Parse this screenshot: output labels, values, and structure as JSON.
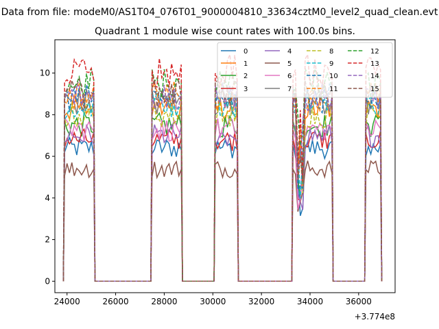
{
  "figure": {
    "suptitle": "Data from file: modeM0/AS1T04_076T01_9000004810_33634cztM0_level2_quad_clean.evt"
  },
  "chart_data": {
    "type": "line",
    "title": "Quadrant 1 module wise count rates with 100.0s bins.",
    "xlabel": "",
    "ylabel": "",
    "x_offset_label": "+3.774e8",
    "xlim": [
      23500,
      37500
    ],
    "ylim": [
      -0.55,
      11.6
    ],
    "x_ticks": [
      24000,
      26000,
      28000,
      30000,
      32000,
      34000,
      36000
    ],
    "y_ticks": [
      0,
      2,
      4,
      6,
      8,
      10
    ],
    "grid": false,
    "legend": {
      "placement": "top-right",
      "columns": 4
    },
    "segments": [
      {
        "start": 23900,
        "end": 25100
      },
      {
        "start": 27500,
        "end": 28700
      },
      {
        "start": 30100,
        "end": 31000
      },
      {
        "start": 33300,
        "end": 34900
      },
      {
        "start": 36300,
        "end": 36900
      }
    ],
    "gaps_value": 0,
    "series": [
      {
        "name": "0",
        "color": "#1f77b4",
        "style": "solid",
        "level": 6.4
      },
      {
        "name": "1",
        "color": "#ff7f0e",
        "style": "solid",
        "level": 8.3
      },
      {
        "name": "2",
        "color": "#2ca02c",
        "style": "solid",
        "level": 7.5
      },
      {
        "name": "3",
        "color": "#d62728",
        "style": "solid",
        "level": 6.8
      },
      {
        "name": "4",
        "color": "#9467bd",
        "style": "solid",
        "level": 7.0
      },
      {
        "name": "5",
        "color": "#8c564b",
        "style": "solid",
        "level": 5.4
      },
      {
        "name": "6",
        "color": "#e377c2",
        "style": "solid",
        "level": 7.3
      },
      {
        "name": "7",
        "color": "#7f7f7f",
        "style": "solid",
        "level": 8.6
      },
      {
        "name": "8",
        "color": "#bcbd22",
        "style": "dashed",
        "level": 8.0
      },
      {
        "name": "9",
        "color": "#17becf",
        "style": "dashed",
        "level": 8.4
      },
      {
        "name": "10",
        "color": "#1f77b4",
        "style": "dashed",
        "level": 8.8
      },
      {
        "name": "11",
        "color": "#ff7f0e",
        "style": "dashed",
        "level": 8.9
      },
      {
        "name": "12",
        "color": "#2ca02c",
        "style": "dashed",
        "level": 9.5
      },
      {
        "name": "13",
        "color": "#d62728",
        "style": "dashed",
        "level": 10.1
      },
      {
        "name": "14",
        "color": "#9467bd",
        "style": "dashed",
        "level": 8.9
      },
      {
        "name": "15",
        "color": "#8c564b",
        "style": "dashed",
        "level": 9.0
      }
    ]
  }
}
